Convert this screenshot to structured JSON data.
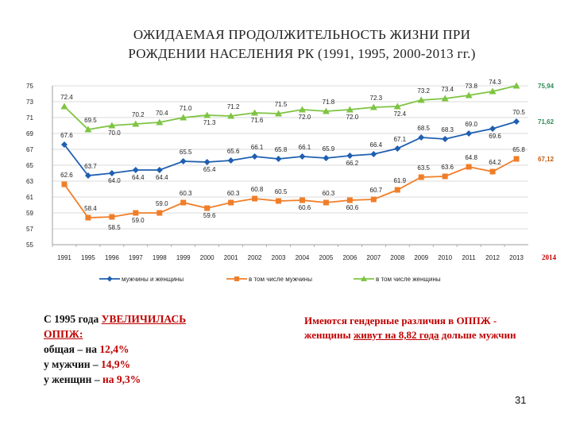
{
  "title_line1": "ОЖИДАЕМАЯ  ПРОДОЛЖИТЕЛЬНОСТЬ  ЖИЗНИ ПРИ",
  "title_line2": "РОЖДЕНИИ НАСЕЛЕНИЯ РК (1991, 1995, 2000-2013 гг.)",
  "chart_data": {
    "type": "line",
    "x": [
      "1991",
      "1995",
      "1996",
      "1997",
      "1998",
      "1999",
      "2000",
      "2001",
      "2002",
      "2003",
      "2004",
      "2005",
      "2006",
      "2007",
      "2008",
      "2009",
      "2010",
      "2011",
      "2012",
      "2013"
    ],
    "ylim": [
      55,
      75
    ],
    "yticks": [
      55,
      57,
      59,
      61,
      63,
      65,
      67,
      69,
      71,
      73,
      75
    ],
    "grid": true,
    "legend_position": "bottom",
    "series": [
      {
        "name": "мужчины и женщины",
        "color": "#1f5fb0",
        "marker": "diamond",
        "values": [
          67.6,
          63.7,
          64.0,
          64.4,
          64.4,
          65.5,
          65.4,
          65.6,
          66.1,
          65.8,
          66.1,
          65.9,
          66.2,
          66.4,
          67.1,
          68.5,
          68.3,
          69.0,
          69.6,
          70.5
        ],
        "labels": [
          "67.6",
          "63.7",
          "64.0",
          "64.4",
          "64.4",
          "65.5",
          "65.4",
          "65.6",
          "66.1",
          "65.8",
          "66.1",
          "65.9",
          "66.2",
          "66.4",
          "67.1",
          "68.5",
          "68.3",
          "69.0",
          "69.6",
          "70.5"
        ],
        "end_label": "71,62"
      },
      {
        "name": "в том числе мужчины",
        "color": "#f07e28",
        "marker": "square",
        "values": [
          62.6,
          58.4,
          58.5,
          59.0,
          59.0,
          60.3,
          59.6,
          60.3,
          60.8,
          60.5,
          60.6,
          60.3,
          60.6,
          60.7,
          61.9,
          63.5,
          63.6,
          64.8,
          64.2,
          65.8
        ],
        "labels": [
          "62.6",
          "58.4",
          "58.5",
          "59.0",
          "59.0",
          "60.3",
          "59.6",
          "60.3",
          "60.8",
          "60.5",
          "60.6",
          "60.3",
          "60.6",
          "60.7",
          "61.9",
          "63.5",
          "63.6",
          "64.8",
          "64.2",
          "65.8"
        ],
        "end_label": "67,12"
      },
      {
        "name": "в том числе женщины",
        "color": "#7ec442",
        "marker": "triangle",
        "values": [
          72.4,
          69.5,
          70.0,
          70.2,
          70.4,
          71.0,
          71.3,
          71.2,
          71.6,
          71.5,
          72.0,
          71.8,
          72.0,
          72.3,
          72.4,
          73.2,
          73.4,
          73.8,
          74.3,
          75.0
        ],
        "labels": [
          "72.4",
          "69.5",
          "70.0",
          "70.2",
          "70.4",
          "71.0",
          "71.3",
          "71.2",
          "71.6",
          "71.5",
          "72.0",
          "71.8",
          "72.0",
          "72.3",
          "72.4",
          "73.2",
          "73.4",
          "73.8",
          "74.3",
          ""
        ],
        "end_label": "75,94"
      }
    ],
    "extra_x_label": "2014",
    "extra_x_label_color": "#c00000"
  },
  "note_left": {
    "line1_pre": "С 1995 года ",
    "line1_red": "УВЕЛИЧИЛАСЬ",
    "line2": "ОППЖ:",
    "line3_pre": "общая – на ",
    "line3_red": "12,4%",
    "line4_pre": "у мужчин – ",
    "line4_red": "14,9%",
    "line5_pre": "у женщин – ",
    "line5_red": "на 9,3%"
  },
  "note_right": {
    "part1": "Имеются гендерные различия в ОППЖ - женщины ",
    "part2": "живут на 8,82 года",
    "part3": " дольше мужчин"
  },
  "page_number": "31"
}
